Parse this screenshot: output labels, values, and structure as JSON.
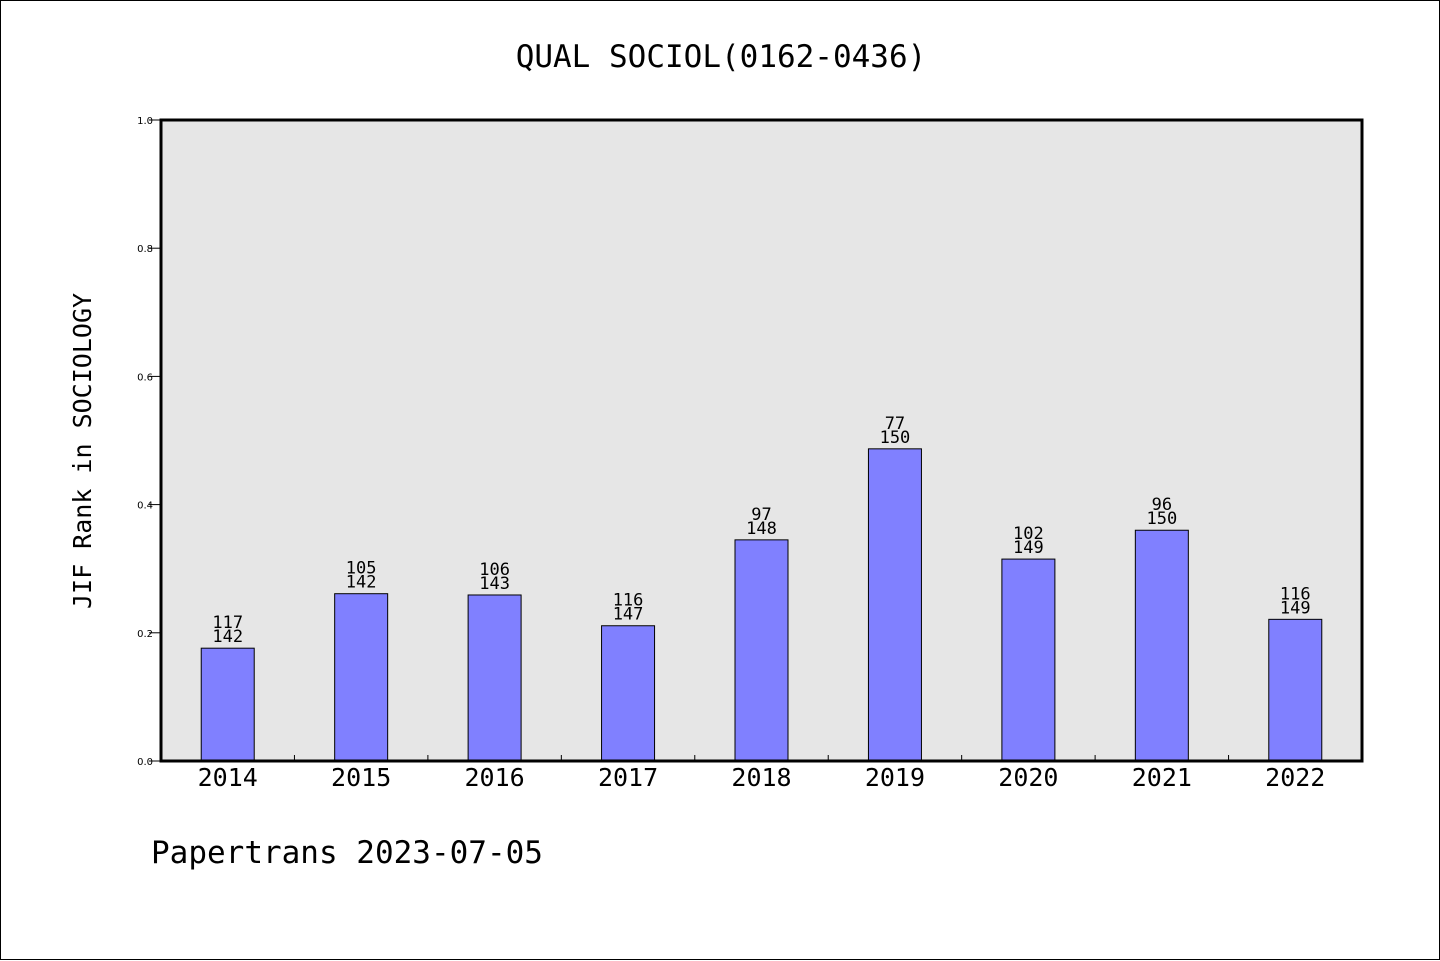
{
  "footer": "Papertrans 2023-07-05",
  "chart_data": {
    "type": "bar",
    "title": "QUAL SOCIOL(0162-0436)",
    "xlabel": "",
    "ylabel": "JIF Rank in SOCIOLOGY",
    "ylim": [
      0,
      1.0
    ],
    "yticks": [
      "0.0",
      "0.2",
      "0.4",
      "0.6",
      "0.8",
      "1.0"
    ],
    "grid": false,
    "categories": [
      "2014",
      "2015",
      "2016",
      "2017",
      "2018",
      "2019",
      "2020",
      "2021",
      "2022"
    ],
    "values": [
      0.176,
      0.261,
      0.259,
      0.211,
      0.345,
      0.487,
      0.315,
      0.36,
      0.221
    ],
    "ranks": [
      "117",
      "105",
      "106",
      "116",
      "97",
      "77",
      "102",
      "96",
      "116"
    ],
    "totals": [
      "142",
      "142",
      "143",
      "147",
      "148",
      "150",
      "149",
      "150",
      "149"
    ],
    "colors": {
      "bar": "#8080ff",
      "plot_bg": "#e6e6e6",
      "axis": "#000000"
    }
  }
}
